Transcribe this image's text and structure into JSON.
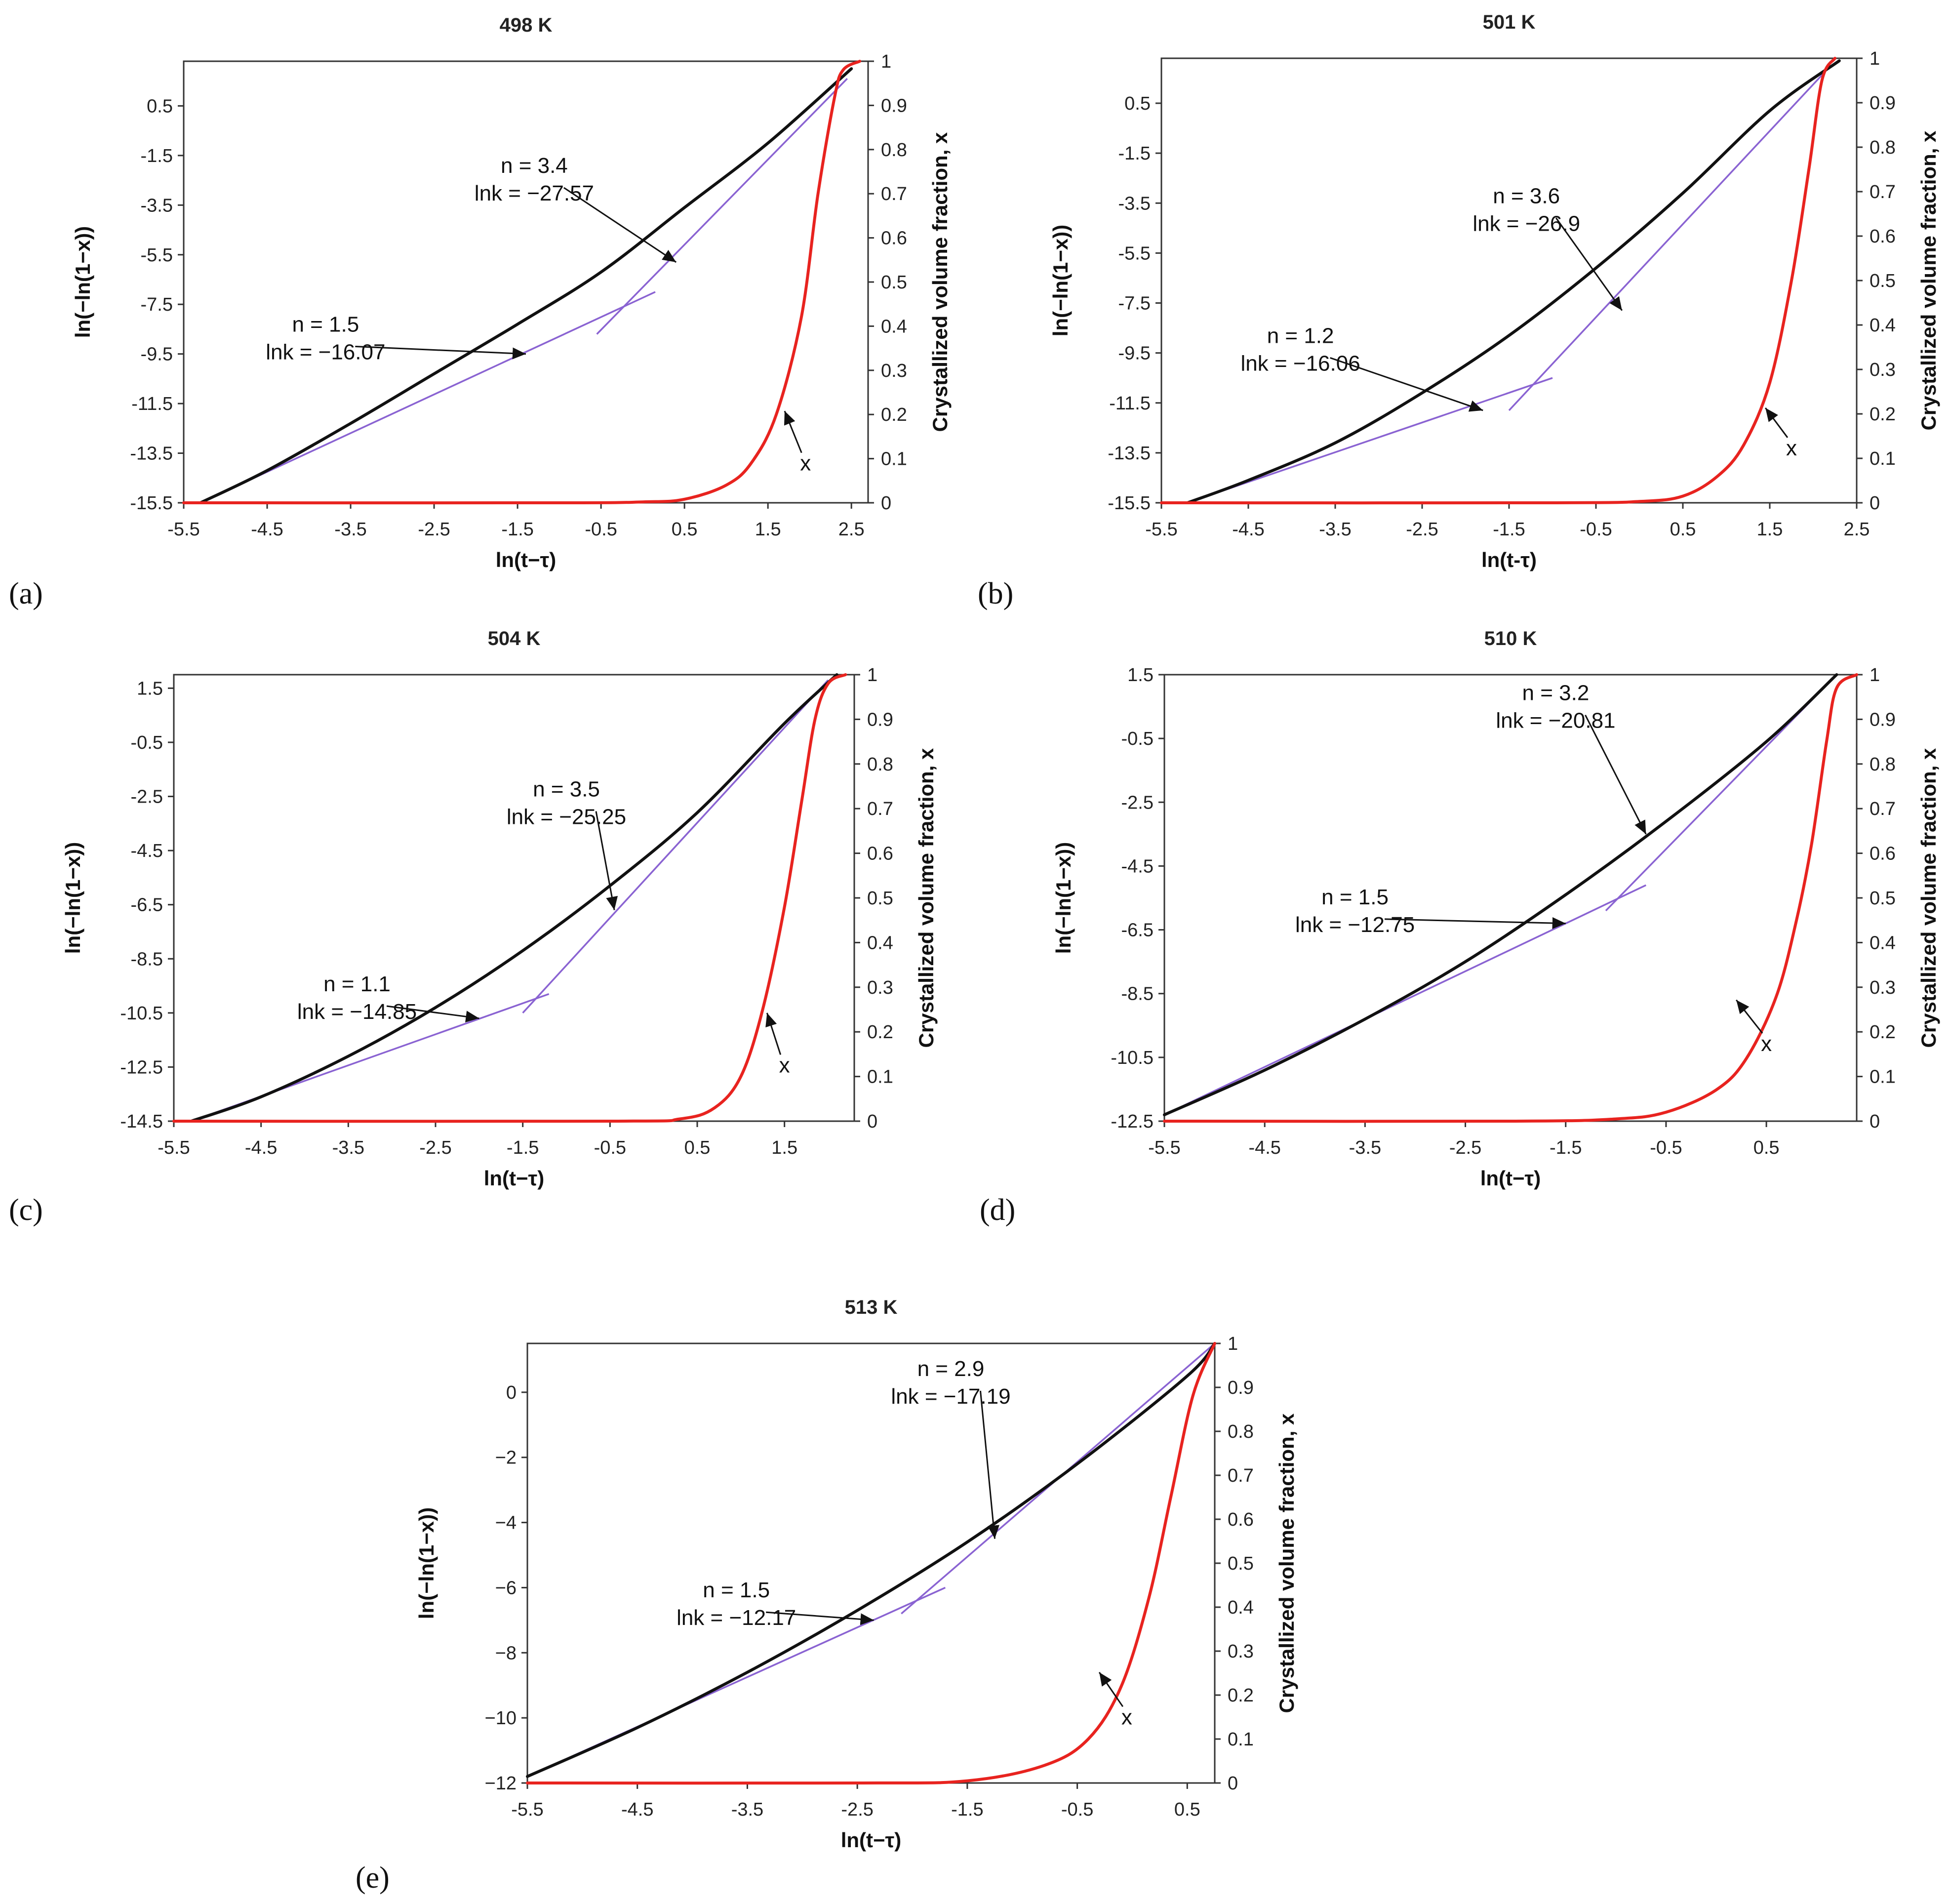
{
  "figure": {
    "colors": {
      "avrami": "#111111",
      "fraction": "#e8231f",
      "fit": "#8a63d2",
      "arrow": "#111111"
    },
    "x_label": "ln(t−τ)",
    "y_left_label": "ln(−ln(1−x))",
    "y_right_label": "Crystallized volume fraction, x",
    "curve_label_x": "x"
  },
  "chart_data": [
    {
      "type": "line",
      "panel_label": "(a)",
      "title": "498 K",
      "xlabel": "ln(t−τ)",
      "xlim": [
        -5.5,
        2.7
      ],
      "x_ticks": [
        "-5.5",
        "-4.5",
        "-3.5",
        "-2.5",
        "-1.5",
        "-0.5",
        "0.5",
        "1.5",
        "2.5"
      ],
      "ylabel_left": "ln(−ln(1−x))",
      "ylim_left": [
        -15.5,
        2.3
      ],
      "y_left_ticks": [
        "0.5",
        "-1.5",
        "-3.5",
        "-5.5",
        "-7.5",
        "-9.5",
        "-11.5",
        "-13.5",
        "-15.5"
      ],
      "ylabel_right": "Crystallized volume fraction, x",
      "ylim_right": [
        0,
        1
      ],
      "y_right_ticks": [
        "0",
        "0.1",
        "0.2",
        "0.3",
        "0.4",
        "0.5",
        "0.6",
        "0.7",
        "0.8",
        "0.9",
        "1"
      ],
      "series": [
        {
          "name": "ln(−ln(1−x))",
          "color": "#111111",
          "x": [
            -5.3,
            -4.5,
            -3.5,
            -2.5,
            -1.5,
            -0.5,
            0.5,
            1.5,
            2.5
          ],
          "y": [
            -15.5,
            -14.2,
            -12.3,
            -10.3,
            -8.3,
            -6.2,
            -3.6,
            -1.0,
            2.0
          ]
        },
        {
          "name": "x",
          "axis": "right",
          "color": "#e8231f",
          "x": [
            -5.5,
            -1.0,
            0.0,
            0.5,
            1.0,
            1.3,
            1.6,
            1.9,
            2.1,
            2.3,
            2.4,
            2.6
          ],
          "y": [
            0,
            0,
            0.002,
            0.008,
            0.04,
            0.09,
            0.2,
            0.42,
            0.7,
            0.92,
            0.98,
            1.0
          ]
        }
      ],
      "fits": [
        {
          "n": "n = 1.5",
          "lnk": "lnk = −16.07",
          "x": [
            -5.3,
            0.15
          ],
          "y": [
            -15.5,
            -7.0
          ]
        },
        {
          "n": "n = 3.4",
          "lnk": "lnk = −27.57",
          "x": [
            -0.55,
            2.45
          ],
          "y": [
            -8.7,
            1.6
          ]
        }
      ],
      "annotations": [
        {
          "lines": [
            "n = 3.4",
            "lnk = −27.57"
          ],
          "text_at": [
            -1.3,
            -2.2
          ],
          "arrow_to": [
            0.4,
            -5.8
          ]
        },
        {
          "lines": [
            "n = 1.5",
            "lnk = −16.07"
          ],
          "text_at": [
            -3.8,
            -8.6
          ],
          "arrow_to": [
            -1.4,
            -9.5
          ]
        },
        {
          "lines": [
            "x"
          ],
          "text_at": [
            1.95,
            -14.2
          ],
          "arrow_to": [
            1.7,
            -11.8
          ]
        }
      ]
    },
    {
      "type": "line",
      "panel_label": "(b)",
      "title": "501 K",
      "xlabel": "ln(t-τ)",
      "xlim": [
        -5.5,
        2.5
      ],
      "x_ticks": [
        "-5.5",
        "-4.5",
        "-3.5",
        "-2.5",
        "-1.5",
        "-0.5",
        "0.5",
        "1.5",
        "2.5"
      ],
      "ylabel_left": "ln(−ln(1−x))",
      "ylim_left": [
        -15.5,
        2.3
      ],
      "y_left_ticks": [
        "0.5",
        "-1.5",
        "-3.5",
        "-5.5",
        "-7.5",
        "-9.5",
        "-11.5",
        "-13.5",
        "-15.5"
      ],
      "ylabel_right": "Crystallized volume fraction, x",
      "ylim_right": [
        0,
        1
      ],
      "y_right_ticks": [
        "0",
        "0.1",
        "0.2",
        "0.3",
        "0.4",
        "0.5",
        "0.6",
        "0.7",
        "0.8",
        "0.9",
        "1"
      ],
      "series": [
        {
          "name": "ln(−ln(1−x))",
          "color": "#111111",
          "x": [
            -5.2,
            -4.5,
            -3.5,
            -2.5,
            -1.5,
            -0.5,
            0.5,
            1.5,
            2.3
          ],
          "y": [
            -15.5,
            -14.6,
            -13.1,
            -11.1,
            -8.8,
            -6.1,
            -3.1,
            0.2,
            2.2
          ]
        },
        {
          "name": "x",
          "axis": "right",
          "color": "#e8231f",
          "x": [
            -5.5,
            -1.0,
            0.0,
            0.5,
            0.9,
            1.2,
            1.5,
            1.75,
            1.95,
            2.1,
            2.25
          ],
          "y": [
            0,
            0,
            0.003,
            0.015,
            0.06,
            0.13,
            0.27,
            0.5,
            0.75,
            0.95,
            1.0
          ]
        }
      ],
      "fits": [
        {
          "n": "n = 1.2",
          "lnk": "lnk = −16.06",
          "x": [
            -5.2,
            -1.0
          ],
          "y": [
            -15.5,
            -10.5
          ]
        },
        {
          "n": "n = 3.6",
          "lnk": "lnk = −26.9",
          "x": [
            -1.5,
            2.2
          ],
          "y": [
            -11.8,
            2.0
          ]
        }
      ],
      "annotations": [
        {
          "lines": [
            "n = 3.6",
            "lnk = −26.9"
          ],
          "text_at": [
            -1.3,
            -3.5
          ],
          "arrow_to": [
            -0.2,
            -7.8
          ]
        },
        {
          "lines": [
            "n = 1.2",
            "lnk = −16.06"
          ],
          "text_at": [
            -3.9,
            -9.1
          ],
          "arrow_to": [
            -1.8,
            -11.8
          ]
        },
        {
          "lines": [
            "x"
          ],
          "text_at": [
            1.75,
            -13.6
          ],
          "arrow_to": [
            1.45,
            -11.7
          ]
        }
      ]
    },
    {
      "type": "line",
      "panel_label": "(c)",
      "title": "504 K",
      "xlabel": "ln(t−τ)",
      "xlim": [
        -5.5,
        2.3
      ],
      "x_ticks": [
        "-5.5",
        "-4.5",
        "-3.5",
        "-2.5",
        "-1.5",
        "-0.5",
        "0.5",
        "1.5"
      ],
      "ylabel_left": "ln(−ln(1−x))",
      "ylim_left": [
        -14.5,
        2.0
      ],
      "y_left_ticks": [
        "1.5",
        "-0.5",
        "-2.5",
        "-4.5",
        "-6.5",
        "-8.5",
        "-10.5",
        "-12.5",
        "-14.5"
      ],
      "ylabel_right": "Crystallized volume fraction, x",
      "ylim_right": [
        0,
        1
      ],
      "y_right_ticks": [
        "0",
        "0.1",
        "0.2",
        "0.3",
        "0.4",
        "0.5",
        "0.6",
        "0.7",
        "0.8",
        "0.9",
        "1"
      ],
      "series": [
        {
          "name": "ln(−ln(1−x))",
          "color": "#111111",
          "x": [
            -5.3,
            -4.5,
            -3.5,
            -2.5,
            -1.5,
            -0.5,
            0.5,
            1.5,
            2.1
          ],
          "y": [
            -14.5,
            -13.6,
            -12.1,
            -10.3,
            -8.2,
            -5.8,
            -3.1,
            0.2,
            2.0
          ]
        },
        {
          "name": "x",
          "axis": "right",
          "color": "#e8231f",
          "x": [
            -5.5,
            -0.5,
            0.3,
            0.7,
            1.0,
            1.25,
            1.5,
            1.7,
            1.85,
            2.0,
            2.2
          ],
          "y": [
            0,
            0,
            0.005,
            0.03,
            0.1,
            0.25,
            0.48,
            0.72,
            0.9,
            0.98,
            1.0
          ]
        }
      ],
      "fits": [
        {
          "n": "n = 1.1",
          "lnk": "lnk = −14.85",
          "x": [
            -5.3,
            -1.2
          ],
          "y": [
            -14.5,
            -9.8
          ]
        },
        {
          "n": "n = 3.5",
          "lnk": "lnk = −25.25",
          "x": [
            -1.5,
            2.0
          ],
          "y": [
            -10.5,
            1.8
          ]
        }
      ],
      "annotations": [
        {
          "lines": [
            "n = 3.5",
            "lnk = −25.25"
          ],
          "text_at": [
            -1.0,
            -2.5
          ],
          "arrow_to": [
            -0.45,
            -6.7
          ]
        },
        {
          "lines": [
            "n = 1.1",
            "lnk = −14.85"
          ],
          "text_at": [
            -3.4,
            -9.7
          ],
          "arrow_to": [
            -2.0,
            -10.7
          ]
        },
        {
          "lines": [
            "x"
          ],
          "text_at": [
            1.5,
            -12.7
          ],
          "arrow_to": [
            1.3,
            -10.5
          ]
        }
      ]
    },
    {
      "type": "line",
      "panel_label": "(d)",
      "title": "510 K",
      "xlabel": "ln(t−τ)",
      "xlim": [
        -5.5,
        1.4
      ],
      "x_ticks": [
        "-5.5",
        "-4.5",
        "-3.5",
        "-2.5",
        "-1.5",
        "-0.5",
        "0.5"
      ],
      "ylabel_left": "ln(−ln(1−x))",
      "ylim_left": [
        -12.5,
        1.5
      ],
      "y_left_ticks": [
        "1.5",
        "-0.5",
        "-2.5",
        "-4.5",
        "-6.5",
        "-8.5",
        "-10.5",
        "-12.5"
      ],
      "ylabel_right": "Crystallized volume fraction, x",
      "ylim_right": [
        0,
        1
      ],
      "y_right_ticks": [
        "0",
        "0.1",
        "0.2",
        "0.3",
        "0.4",
        "0.5",
        "0.6",
        "0.7",
        "0.8",
        "0.9",
        "1"
      ],
      "series": [
        {
          "name": "ln(−ln(1−x))",
          "color": "#111111",
          "x": [
            -5.5,
            -4.5,
            -3.5,
            -2.5,
            -1.5,
            -0.5,
            0.5,
            1.2
          ],
          "y": [
            -12.3,
            -10.9,
            -9.3,
            -7.5,
            -5.4,
            -3.1,
            -0.6,
            1.5
          ]
        },
        {
          "name": "x",
          "axis": "right",
          "color": "#e8231f",
          "x": [
            -5.5,
            -2.0,
            -1.0,
            -0.5,
            0.0,
            0.3,
            0.6,
            0.8,
            0.95,
            1.1,
            1.2,
            1.4
          ],
          "y": [
            0,
            0,
            0.005,
            0.02,
            0.07,
            0.14,
            0.28,
            0.45,
            0.62,
            0.85,
            0.97,
            1.0
          ]
        }
      ],
      "fits": [
        {
          "n": "n = 1.5",
          "lnk": "lnk = −12.75",
          "x": [
            -5.5,
            -0.7
          ],
          "y": [
            -12.3,
            -5.1
          ]
        },
        {
          "n": "n = 3.2",
          "lnk": "lnk = −20.81",
          "x": [
            -1.1,
            1.2
          ],
          "y": [
            -5.9,
            1.5
          ]
        }
      ],
      "annotations": [
        {
          "lines": [
            "n = 3.2",
            "lnk = −20.81"
          ],
          "text_at": [
            -1.6,
            0.7
          ],
          "arrow_to": [
            -0.7,
            -3.5
          ]
        },
        {
          "lines": [
            "n = 1.5",
            "lnk = −12.75"
          ],
          "text_at": [
            -3.6,
            -5.7
          ],
          "arrow_to": [
            -1.5,
            -6.3
          ]
        },
        {
          "lines": [
            "x"
          ],
          "text_at": [
            0.5,
            -10.3
          ],
          "arrow_to": [
            0.2,
            -8.7
          ]
        }
      ]
    },
    {
      "type": "line",
      "panel_label": "(e)",
      "title": "513 K",
      "xlabel": "ln(t−τ)",
      "xlim": [
        -5.5,
        0.75
      ],
      "x_ticks": [
        "-5.5",
        "-4.5",
        "-3.5",
        "-2.5",
        "-1.5",
        "-0.5",
        "0.5"
      ],
      "ylabel_left": "ln(−ln(1−x))",
      "ylim_left": [
        -12.0,
        1.5
      ],
      "y_left_ticks": [
        "0",
        "−2",
        "−4",
        "−6",
        "−8",
        "−10",
        "−12"
      ],
      "ylabel_right": "Crystallized volume fraction, x",
      "ylim_right": [
        0,
        1
      ],
      "y_right_ticks": [
        "0",
        "0.1",
        "0.2",
        "0.3",
        "0.4",
        "0.5",
        "0.6",
        "0.7",
        "0.8",
        "0.9",
        "1"
      ],
      "series": [
        {
          "name": "ln(−ln(1−x))",
          "color": "#111111",
          "x": [
            -5.5,
            -4.5,
            -3.5,
            -2.5,
            -1.5,
            -0.5,
            0.5,
            0.75
          ],
          "y": [
            -11.8,
            -10.3,
            -8.6,
            -6.7,
            -4.6,
            -2.2,
            0.5,
            1.5
          ]
        },
        {
          "name": "x",
          "axis": "right",
          "color": "#e8231f",
          "x": [
            -5.5,
            -2.5,
            -1.5,
            -0.8,
            -0.4,
            -0.1,
            0.15,
            0.35,
            0.55,
            0.75
          ],
          "y": [
            0,
            0,
            0.005,
            0.04,
            0.1,
            0.22,
            0.42,
            0.65,
            0.88,
            1.0
          ]
        }
      ],
      "fits": [
        {
          "n": "n = 1.5",
          "lnk": "lnk = −12.17",
          "x": [
            -5.5,
            -1.7
          ],
          "y": [
            -11.8,
            -6.0
          ]
        },
        {
          "n": "n = 2.9",
          "lnk": "lnk = −17.19",
          "x": [
            -2.1,
            0.75
          ],
          "y": [
            -6.8,
            1.5
          ]
        }
      ],
      "annotations": [
        {
          "lines": [
            "n = 2.9",
            "lnk = −17.19"
          ],
          "text_at": [
            -1.65,
            0.5
          ],
          "arrow_to": [
            -1.25,
            -4.5
          ]
        },
        {
          "lines": [
            "n = 1.5",
            "lnk = −12.17"
          ],
          "text_at": [
            -3.6,
            -6.3
          ],
          "arrow_to": [
            -2.35,
            -7.0
          ]
        },
        {
          "lines": [
            "x"
          ],
          "text_at": [
            -0.05,
            -10.2
          ],
          "arrow_to": [
            -0.3,
            -8.6
          ]
        }
      ]
    }
  ]
}
